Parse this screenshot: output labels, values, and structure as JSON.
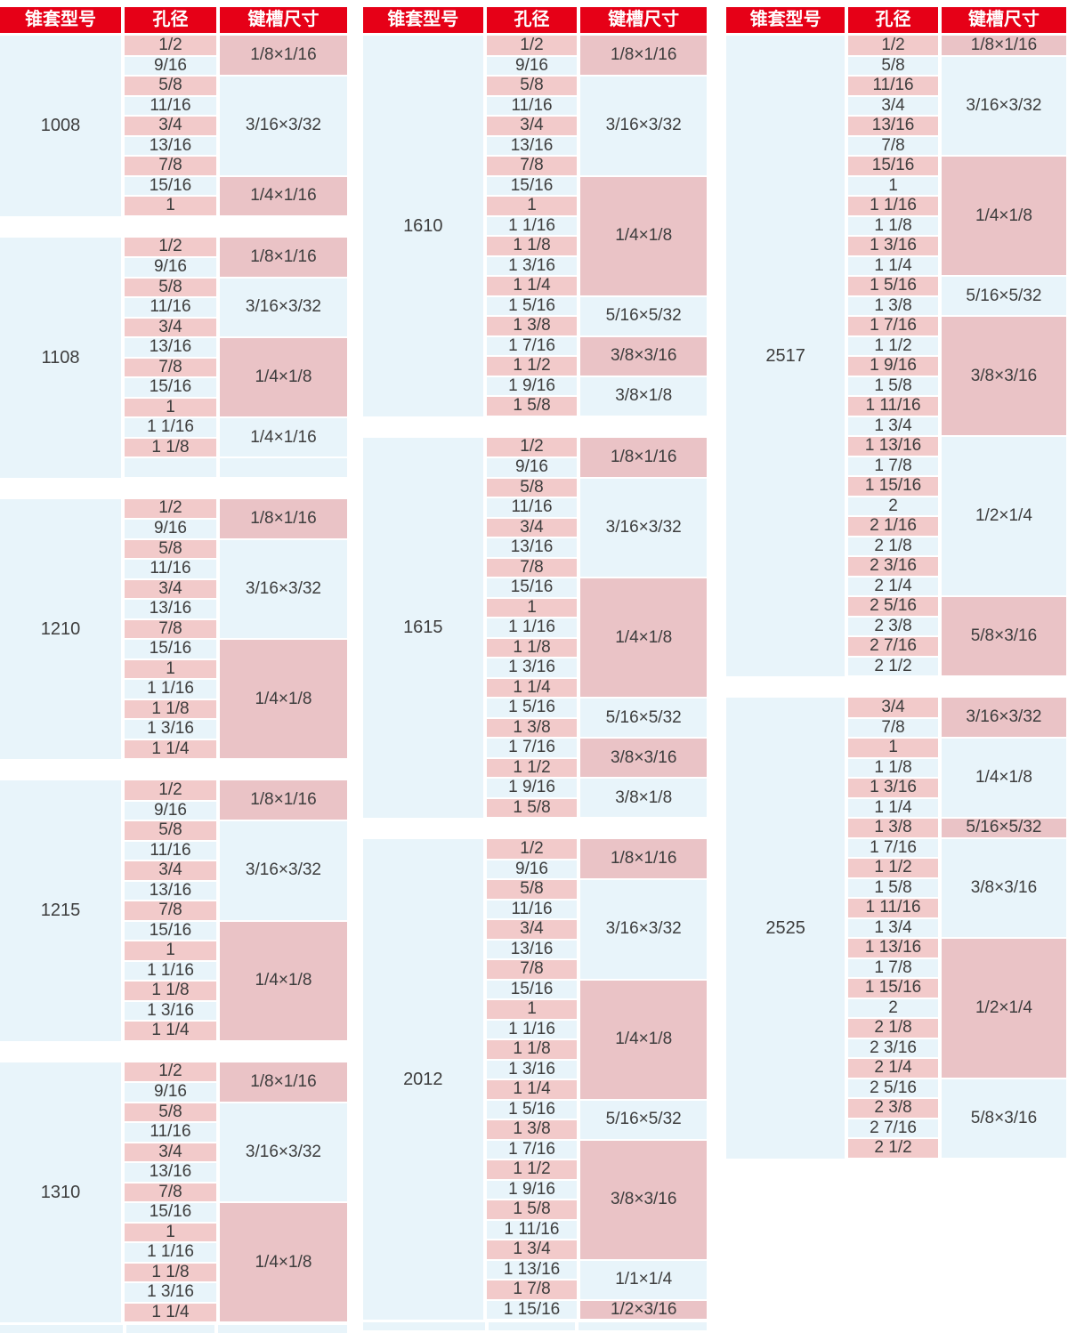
{
  "header": {
    "model": "锥套型号",
    "bore": "孔径",
    "keyway": "键槽尺寸"
  },
  "colors": {
    "header_bg": "#e60017",
    "header_text": "#ffffff",
    "row_pink": "#f2caca",
    "keyway_pink": "#eac3c6",
    "row_blue": "#e8f4fa",
    "text": "#3d3d3d",
    "page_bg": "#ffffff"
  },
  "columns": [
    {
      "blocks": [
        {
          "model": "1008",
          "groups": [
            {
              "keyway": "1/8×1/16",
              "tone": "pink",
              "bores": [
                "1/2",
                "9/16"
              ]
            },
            {
              "keyway": "3/16×3/32",
              "tone": "blue",
              "bores": [
                "5/8",
                "11/16",
                "3/4",
                "13/16",
                "7/8"
              ]
            },
            {
              "keyway": "1/4×1/16",
              "tone": "pink",
              "bores": [
                "15/16",
                "1"
              ]
            }
          ]
        },
        {
          "model": "1108",
          "groups": [
            {
              "keyway": "1/8×1/16",
              "tone": "pink",
              "bores": [
                "1/2",
                "9/16"
              ]
            },
            {
              "keyway": "3/16×3/32",
              "tone": "blue",
              "bores": [
                "5/8",
                "11/16",
                "3/4"
              ]
            },
            {
              "keyway": "1/4×1/8",
              "tone": "pink",
              "bores": [
                "13/16",
                "7/8",
                "15/16",
                "1"
              ]
            },
            {
              "keyway": "1/4×1/16",
              "tone": "blue",
              "bores": [
                "1 1/16",
                "1 1/8"
              ]
            },
            {
              "keyway": "",
              "tone": "blue",
              "bores": [
                ""
              ]
            }
          ]
        },
        {
          "model": "1210",
          "groups": [
            {
              "keyway": "1/8×1/16",
              "tone": "pink",
              "bores": [
                "1/2",
                "9/16"
              ]
            },
            {
              "keyway": "3/16×3/32",
              "tone": "blue",
              "bores": [
                "5/8",
                "11/16",
                "3/4",
                "13/16",
                "7/8"
              ]
            },
            {
              "keyway": "1/4×1/8",
              "tone": "pink",
              "bores": [
                "15/16",
                "1",
                "1 1/16",
                "1 1/8",
                "1 3/16",
                "1 1/4"
              ]
            }
          ]
        },
        {
          "model": "1215",
          "groups": [
            {
              "keyway": "1/8×1/16",
              "tone": "pink",
              "bores": [
                "1/2",
                "9/16"
              ]
            },
            {
              "keyway": "3/16×3/32",
              "tone": "blue",
              "bores": [
                "5/8",
                "11/16",
                "3/4",
                "13/16",
                "7/8"
              ]
            },
            {
              "keyway": "1/4×1/8",
              "tone": "pink",
              "bores": [
                "15/16",
                "1",
                "1 1/16",
                "1 1/8",
                "1 3/16",
                "1 1/4"
              ]
            }
          ]
        },
        {
          "model": "1310",
          "groups": [
            {
              "keyway": "1/8×1/16",
              "tone": "pink",
              "bores": [
                "1/2",
                "9/16"
              ]
            },
            {
              "keyway": "3/16×3/32",
              "tone": "blue",
              "bores": [
                "5/8",
                "11/16",
                "3/4",
                "13/16",
                "7/8"
              ]
            },
            {
              "keyway": "1/4×1/8",
              "tone": "pink",
              "bores": [
                "15/16",
                "1",
                "1 1/16",
                "1 1/8",
                "1 3/16",
                "1 1/4"
              ]
            }
          ]
        }
      ]
    },
    {
      "blocks": [
        {
          "model": "1610",
          "groups": [
            {
              "keyway": "1/8×1/16",
              "tone": "pink",
              "bores": [
                "1/2",
                "9/16"
              ]
            },
            {
              "keyway": "3/16×3/32",
              "tone": "blue",
              "bores": [
                "5/8",
                "11/16",
                "3/4",
                "13/16",
                "7/8"
              ]
            },
            {
              "keyway": "1/4×1/8",
              "tone": "pink",
              "bores": [
                "15/16",
                "1",
                "1 1/16",
                "1 1/8",
                "1 3/16",
                "1 1/4"
              ]
            },
            {
              "keyway": "5/16×5/32",
              "tone": "blue",
              "bores": [
                "1 5/16",
                "1 3/8"
              ]
            },
            {
              "keyway": "3/8×3/16",
              "tone": "pink",
              "bores": [
                "1 7/16",
                "1 1/2"
              ]
            },
            {
              "keyway": "3/8×1/8",
              "tone": "blue",
              "bores": [
                "1 9/16",
                "1 5/8"
              ]
            }
          ]
        },
        {
          "model": "1615",
          "groups": [
            {
              "keyway": "1/8×1/16",
              "tone": "pink",
              "bores": [
                "1/2",
                "9/16"
              ]
            },
            {
              "keyway": "3/16×3/32",
              "tone": "blue",
              "bores": [
                "5/8",
                "11/16",
                "3/4",
                "13/16",
                "7/8"
              ]
            },
            {
              "keyway": "1/4×1/8",
              "tone": "pink",
              "bores": [
                "15/16",
                "1",
                "1 1/16",
                "1 1/8",
                "1 3/16",
                "1 1/4"
              ]
            },
            {
              "keyway": "5/16×5/32",
              "tone": "blue",
              "bores": [
                "1 5/16",
                "1 3/8"
              ]
            },
            {
              "keyway": "3/8×3/16",
              "tone": "pink",
              "bores": [
                "1 7/16",
                "1 1/2"
              ]
            },
            {
              "keyway": "3/8×1/8",
              "tone": "blue",
              "bores": [
                "1 9/16",
                "1 5/8"
              ]
            }
          ]
        },
        {
          "model": "2012",
          "groups": [
            {
              "keyway": "1/8×1/16",
              "tone": "pink",
              "bores": [
                "1/2",
                "9/16"
              ]
            },
            {
              "keyway": "3/16×3/32",
              "tone": "blue",
              "bores": [
                "5/8",
                "11/16",
                "3/4",
                "13/16",
                "7/8"
              ]
            },
            {
              "keyway": "1/4×1/8",
              "tone": "pink",
              "bores": [
                "15/16",
                "1",
                "1 1/16",
                "1 1/8",
                "1 3/16",
                "1 1/4"
              ]
            },
            {
              "keyway": "5/16×5/32",
              "tone": "blue",
              "bores": [
                "1 5/16",
                "1 3/8"
              ]
            },
            {
              "keyway": "3/8×3/16",
              "tone": "pink",
              "bores": [
                "1 7/16",
                "1 1/2",
                "1 9/16",
                "1 5/8",
                "1 11/16",
                "1 3/4"
              ]
            },
            {
              "keyway": "1/1×1/4",
              "tone": "blue",
              "bores": [
                "1 13/16",
                "1 7/8"
              ]
            },
            {
              "keyway": "1/2×3/16",
              "tone": "pink",
              "bores": [
                "1 15/16"
              ]
            }
          ]
        }
      ]
    },
    {
      "blocks": [
        {
          "model": "2517",
          "groups": [
            {
              "keyway": "1/8×1/16",
              "tone": "pink",
              "bores": [
                "1/2"
              ]
            },
            {
              "keyway": "3/16×3/32",
              "tone": "blue",
              "bores": [
                "5/8",
                "11/16",
                "3/4",
                "13/16",
                "7/8"
              ]
            },
            {
              "keyway": "1/4×1/8",
              "tone": "pink",
              "bores": [
                "15/16",
                "1",
                "1 1/16",
                "1 1/8",
                "1 3/16",
                "1 1/4"
              ]
            },
            {
              "keyway": "5/16×5/32",
              "tone": "blue",
              "bores": [
                "1 5/16",
                "1 3/8"
              ]
            },
            {
              "keyway": "3/8×3/16",
              "tone": "pink",
              "bores": [
                "1 7/16",
                "1 1/2",
                "1 9/16",
                "1 5/8",
                "1 11/16",
                "1 3/4"
              ]
            },
            {
              "keyway": "1/2×1/4",
              "tone": "blue",
              "bores": [
                "1 13/16",
                "1 7/8",
                "1 15/16",
                "2",
                "2 1/16",
                "2 1/8",
                "2 3/16",
                "2 1/4"
              ]
            },
            {
              "keyway": "5/8×3/16",
              "tone": "pink",
              "bores": [
                "2 5/16",
                "2 3/8",
                "2 7/16",
                "2 1/2"
              ]
            }
          ]
        },
        {
          "model": "2525",
          "groups": [
            {
              "keyway": "3/16×3/32",
              "tone": "pink",
              "bores": [
                "3/4",
                "7/8"
              ]
            },
            {
              "keyway": "1/4×1/8",
              "tone": "blue",
              "bores": [
                "1",
                "1 1/8",
                "1 3/16",
                "1 1/4"
              ]
            },
            {
              "keyway": "5/16×5/32",
              "tone": "pink",
              "bores": [
                "1 3/8"
              ]
            },
            {
              "keyway": "3/8×3/16",
              "tone": "blue",
              "bores": [
                "1 7/16",
                "1 1/2",
                "1 5/8",
                "1 11/16",
                "1 3/4"
              ]
            },
            {
              "keyway": "1/2×1/4",
              "tone": "pink",
              "bores": [
                "1 13/16",
                "1 7/8",
                "1 15/16",
                "2",
                "2 1/8",
                "2 3/16",
                "2 1/4"
              ]
            },
            {
              "keyway": "5/8×3/16",
              "tone": "blue",
              "bores": [
                "2 5/16",
                "2 3/8",
                "2 7/16",
                "2 1/2"
              ]
            }
          ]
        }
      ]
    }
  ]
}
